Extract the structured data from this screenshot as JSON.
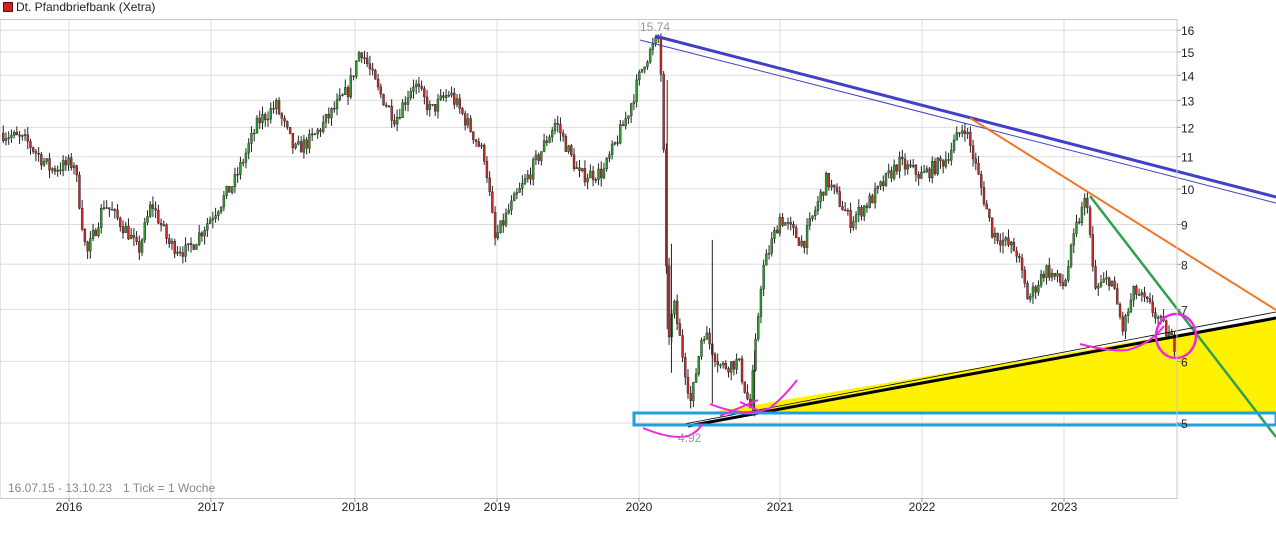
{
  "chart_data": {
    "type": "candlestick",
    "title": "Dt. Pfandbriefbank (Xetra)",
    "range_label": "16.07.15 - 13.10.23",
    "tick_label": "1 Tick = 1 Woche",
    "x_tick_labels": [
      "2016",
      "2017",
      "2018",
      "2019",
      "2020",
      "2021",
      "2022",
      "2023"
    ],
    "y_tick_labels": [
      "5",
      "6",
      "7",
      "8",
      "9",
      "10",
      "11",
      "12",
      "13",
      "14",
      "15",
      "16"
    ],
    "y_scale": "log",
    "ylim": [
      4.4,
      16.5
    ],
    "grid": true,
    "high_label": "15.74",
    "low_label": "4.92",
    "price_path": [
      [
        "2015-07-16",
        11.8
      ],
      [
        "2015-09-15",
        11.5
      ],
      [
        "2015-11-15",
        10.6
      ],
      [
        "2016-01-15",
        10.8
      ],
      [
        "2016-02-15",
        8.2
      ],
      [
        "2016-04-01",
        9.6
      ],
      [
        "2016-06-01",
        8.8
      ],
      [
        "2016-06-28",
        8.3
      ],
      [
        "2016-08-01",
        9.6
      ],
      [
        "2016-09-15",
        8.5
      ],
      [
        "2016-11-01",
        8.3
      ],
      [
        "2017-01-01",
        9.2
      ],
      [
        "2017-03-01",
        10.2
      ],
      [
        "2017-05-01",
        12.2
      ],
      [
        "2017-06-15",
        12.8
      ],
      [
        "2017-08-01",
        11.2
      ],
      [
        "2017-09-15",
        11.6
      ],
      [
        "2017-11-01",
        12.5
      ],
      [
        "2017-12-15",
        13.4
      ],
      [
        "2018-01-15",
        15.2
      ],
      [
        "2018-03-01",
        13.4
      ],
      [
        "2018-04-15",
        12.3
      ],
      [
        "2018-06-01",
        13.7
      ],
      [
        "2018-07-15",
        12.6
      ],
      [
        "2018-09-01",
        13.3
      ],
      [
        "2018-10-15",
        12.2
      ],
      [
        "2018-12-01",
        11.0
      ],
      [
        "2018-12-27",
        8.6
      ],
      [
        "2019-02-01",
        9.4
      ],
      [
        "2019-04-01",
        10.6
      ],
      [
        "2019-06-01",
        12.2
      ],
      [
        "2019-08-01",
        10.4
      ],
      [
        "2019-10-01",
        10.5
      ],
      [
        "2019-12-01",
        12.4
      ],
      [
        "2020-01-15",
        14.6
      ],
      [
        "2020-02-20",
        15.6
      ],
      [
        "2020-03-01",
        13.5
      ],
      [
        "2020-03-16",
        6.4
      ],
      [
        "2020-04-01",
        7.1
      ],
      [
        "2020-05-15",
        5.3
      ],
      [
        "2020-06-15",
        6.6
      ],
      [
        "2020-08-01",
        5.9
      ],
      [
        "2020-09-15",
        6.0
      ],
      [
        "2020-10-15",
        5.2
      ],
      [
        "2020-11-15",
        7.8
      ],
      [
        "2021-01-01",
        9.2
      ],
      [
        "2021-03-01",
        8.5
      ],
      [
        "2021-05-01",
        10.3
      ],
      [
        "2021-07-01",
        9.1
      ],
      [
        "2021-09-01",
        9.8
      ],
      [
        "2021-11-01",
        10.8
      ],
      [
        "2022-01-01",
        10.4
      ],
      [
        "2022-03-01",
        10.9
      ],
      [
        "2022-04-20",
        12.1
      ],
      [
        "2022-05-15",
        10.9
      ],
      [
        "2022-07-01",
        8.8
      ],
      [
        "2022-09-01",
        8.3
      ],
      [
        "2022-10-01",
        7.2
      ],
      [
        "2022-11-15",
        7.9
      ],
      [
        "2023-01-01",
        7.5
      ],
      [
        "2023-02-01",
        8.9
      ],
      [
        "2023-03-01",
        9.8
      ],
      [
        "2023-03-20",
        7.4
      ],
      [
        "2023-05-01",
        7.7
      ],
      [
        "2023-06-01",
        6.6
      ],
      [
        "2023-07-01",
        7.4
      ],
      [
        "2023-08-15",
        7.0
      ],
      [
        "2023-10-13",
        6.3
      ]
    ],
    "colors": {
      "up": "#2e9a2e",
      "down": "#c42a2a",
      "wick": "#222222",
      "grid": "#dddddd",
      "blue_trend": "#4040c8",
      "orange_trend": "#f07828",
      "green_trend": "#30a050",
      "black_trend": "#000000",
      "highlight_fill": "#fff200",
      "support_box": "#20a0e0",
      "annotation": "#f028e0",
      "label_muted": "#999999"
    }
  }
}
